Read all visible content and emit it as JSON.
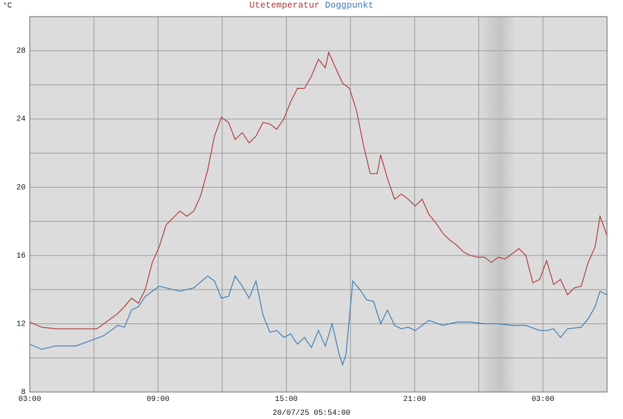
{
  "chart_data": {
    "type": "line",
    "unit_label": "°C",
    "timestamp": "20/07/25 05:54:00",
    "xlim": [
      0,
      27
    ],
    "xticks": [
      {
        "value": 0,
        "label": "03:00"
      },
      {
        "value": 6,
        "label": "09:00"
      },
      {
        "value": 12,
        "label": "15:00"
      },
      {
        "value": 18,
        "label": "21:00"
      },
      {
        "value": 24,
        "label": "03:00"
      }
    ],
    "minor_xticks": [
      3,
      9,
      15,
      21,
      27
    ],
    "ylim": [
      8,
      30
    ],
    "yticks": [
      8,
      12,
      16,
      20,
      24,
      28
    ],
    "minor_yticks": [
      10,
      14,
      18,
      22,
      26,
      30
    ],
    "grid": true,
    "series": [
      {
        "name": "Utetemperatur",
        "color": "#b23535",
        "x": [
          0,
          0.55,
          1.2,
          1.84,
          2.43,
          3.14,
          3.46,
          3.79,
          4.11,
          4.43,
          4.76,
          5.08,
          5.4,
          5.73,
          6.05,
          6.38,
          6.7,
          7.02,
          7.35,
          7.67,
          7.99,
          8.32,
          8.64,
          8.96,
          9.29,
          9.61,
          9.94,
          10.26,
          10.58,
          10.91,
          11.23,
          11.55,
          11.88,
          12.2,
          12.52,
          12.85,
          13.17,
          13.5,
          13.82,
          13.98,
          14.3,
          14.63,
          14.95,
          15.28,
          15.6,
          15.92,
          16.25,
          16.41,
          16.73,
          17.06,
          17.38,
          17.7,
          18.03,
          18.35,
          18.67,
          19,
          19.32,
          19.64,
          19.97,
          20.29,
          20.61,
          20.94,
          21.26,
          21.59,
          21.91,
          22.23,
          22.56,
          22.88,
          23.2,
          23.53,
          23.85,
          24.17,
          24.5,
          24.82,
          25.15,
          25.47,
          25.79,
          26.12,
          26.44,
          26.67,
          26.99
        ],
        "values": [
          12.1,
          11.8,
          11.7,
          11.7,
          11.7,
          11.7,
          12.0,
          12.3,
          12.6,
          13.0,
          13.5,
          13.2,
          14.0,
          15.6,
          16.5,
          17.8,
          18.2,
          18.6,
          18.3,
          18.6,
          19.5,
          21,
          23,
          24.1,
          23.8,
          22.8,
          23.2,
          22.6,
          23,
          23.8,
          23.7,
          23.4,
          24,
          25,
          25.8,
          25.8,
          26.5,
          27.5,
          27,
          27.9,
          27,
          26.1,
          25.8,
          24.5,
          22.5,
          20.8,
          20.8,
          21.9,
          20.5,
          19.3,
          19.6,
          19.3,
          18.9,
          19.3,
          18.4,
          17.9,
          17.3,
          16.9,
          16.6,
          16.2,
          16.0,
          15.9,
          15.9,
          15.6,
          15.9,
          15.8,
          16.1,
          16.4,
          16,
          14.4,
          14.6,
          15.7,
          14.3,
          14.6,
          13.7,
          14.1,
          14.2,
          15.6,
          16.5,
          18.3,
          17.2
        ]
      },
      {
        "name": "Doggpunkt",
        "color": "#3a78b5",
        "x": [
          0,
          0.55,
          1.2,
          2.17,
          2.82,
          3.46,
          4.11,
          4.43,
          4.76,
          5.08,
          5.4,
          5.73,
          6.05,
          6.38,
          7.02,
          7.67,
          8.32,
          8.64,
          8.96,
          9.29,
          9.61,
          9.94,
          10.26,
          10.58,
          10.91,
          11.23,
          11.55,
          11.88,
          12.2,
          12.52,
          12.85,
          13.17,
          13.5,
          13.82,
          14.14,
          14.47,
          14.63,
          14.79,
          15.11,
          15.44,
          15.76,
          16.08,
          16.41,
          16.73,
          17.06,
          17.38,
          17.7,
          18.03,
          18.67,
          19.32,
          19.97,
          20.61,
          21.26,
          21.91,
          22.56,
          23.2,
          23.85,
          24.17,
          24.5,
          24.82,
          25.15,
          25.79,
          26.12,
          26.44,
          26.67,
          26.99
        ],
        "values": [
          10.8,
          10.5,
          10.7,
          10.7,
          11.0,
          11.3,
          11.9,
          11.8,
          12.8,
          13.0,
          13.6,
          13.9,
          14.2,
          14.1,
          13.9,
          14.1,
          14.8,
          14.5,
          13.5,
          13.6,
          14.8,
          14.2,
          13.5,
          14.5,
          12.5,
          11.5,
          11.6,
          11.2,
          11.4,
          10.8,
          11.2,
          10.6,
          11.6,
          10.7,
          12.0,
          10.2,
          9.6,
          10.2,
          14.5,
          14.0,
          13.4,
          13.3,
          12.0,
          12.8,
          11.9,
          11.7,
          11.8,
          11.6,
          12.2,
          11.9,
          12.1,
          12.1,
          12.0,
          12.0,
          11.9,
          11.9,
          11.6,
          11.6,
          11.7,
          11.2,
          11.7,
          11.8,
          12.3,
          13.0,
          13.9,
          13.7
        ]
      }
    ]
  }
}
